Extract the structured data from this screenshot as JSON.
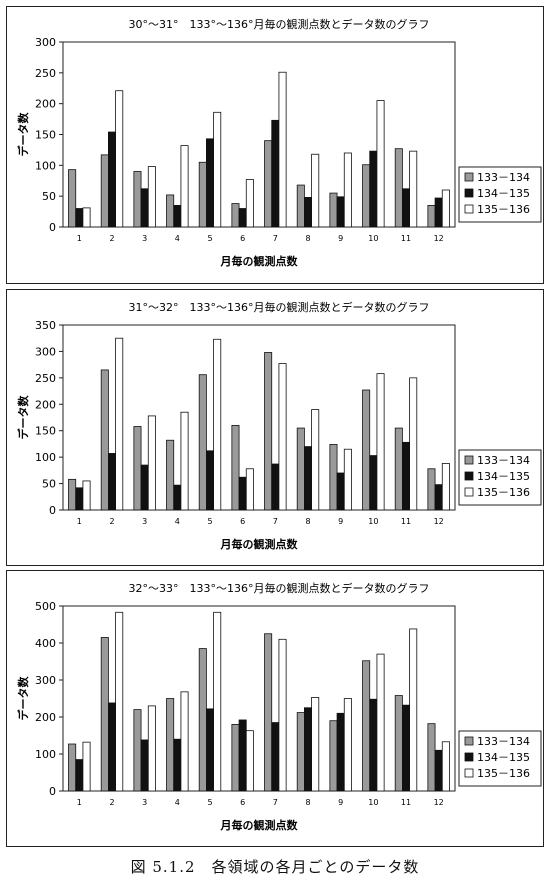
{
  "caption": "図 5.1.2　各領域の各月ごとのデータ数",
  "chart_data": [
    {
      "type": "bar",
      "title": "30°～31°　133°～136°月毎の観測点数とデータ数のグラフ",
      "xlabel": "月毎の観測点数",
      "ylabel": "データ数",
      "ylim": [
        0,
        300
      ],
      "yticks": [
        0,
        50,
        100,
        150,
        200,
        250,
        300
      ],
      "categories": [
        "1",
        "2",
        "3",
        "4",
        "5",
        "6",
        "7",
        "8",
        "9",
        "10",
        "11",
        "12"
      ],
      "legend_position": "right",
      "grid": false,
      "series": [
        {
          "name": "133－134",
          "color": "#9a9a9a",
          "values": [
            93,
            117,
            90,
            52,
            105,
            38,
            140,
            68,
            55,
            101,
            127,
            35
          ]
        },
        {
          "name": "134－135",
          "color": "#111111",
          "values": [
            30,
            154,
            62,
            35,
            143,
            30,
            173,
            48,
            49,
            123,
            62,
            47
          ]
        },
        {
          "name": "135－136",
          "color": "#ffffff",
          "values": [
            31,
            221,
            98,
            132,
            186,
            77,
            251,
            118,
            120,
            205,
            123,
            60
          ]
        }
      ]
    },
    {
      "type": "bar",
      "title": "31°～32°　133°～136°月毎の観測点数とデータ数のグラフ",
      "xlabel": "月毎の観測点数",
      "ylabel": "データ数",
      "ylim": [
        0,
        350
      ],
      "yticks": [
        0,
        50,
        100,
        150,
        200,
        250,
        300,
        350
      ],
      "categories": [
        "1",
        "2",
        "3",
        "4",
        "5",
        "6",
        "7",
        "8",
        "9",
        "10",
        "11",
        "12"
      ],
      "legend_position": "right",
      "grid": false,
      "series": [
        {
          "name": "133－134",
          "color": "#9a9a9a",
          "values": [
            58,
            265,
            158,
            132,
            256,
            160,
            298,
            155,
            124,
            227,
            155,
            78
          ]
        },
        {
          "name": "134－135",
          "color": "#111111",
          "values": [
            42,
            107,
            85,
            47,
            112,
            62,
            87,
            120,
            70,
            103,
            128,
            48
          ]
        },
        {
          "name": "135－136",
          "color": "#ffffff",
          "values": [
            55,
            325,
            178,
            185,
            323,
            78,
            277,
            190,
            115,
            258,
            250,
            88
          ]
        }
      ]
    },
    {
      "type": "bar",
      "title": "32°～33°　133°～136°月毎の観測点数とデータ数のグラフ",
      "xlabel": "月毎の観測点数",
      "ylabel": "データ数",
      "ylim": [
        0,
        500
      ],
      "yticks": [
        0,
        100,
        200,
        300,
        400,
        500
      ],
      "categories": [
        "1",
        "2",
        "3",
        "4",
        "5",
        "6",
        "7",
        "8",
        "9",
        "10",
        "11",
        "12"
      ],
      "legend_position": "right",
      "grid": false,
      "series": [
        {
          "name": "133－134",
          "color": "#9a9a9a",
          "values": [
            127,
            415,
            220,
            250,
            385,
            180,
            425,
            212,
            190,
            352,
            258,
            182
          ]
        },
        {
          "name": "134－135",
          "color": "#111111",
          "values": [
            85,
            238,
            138,
            140,
            222,
            192,
            185,
            225,
            210,
            248,
            232,
            110
          ]
        },
        {
          "name": "135－136",
          "color": "#ffffff",
          "values": [
            132,
            483,
            230,
            268,
            483,
            163,
            410,
            253,
            250,
            370,
            438,
            133
          ]
        }
      ]
    }
  ]
}
